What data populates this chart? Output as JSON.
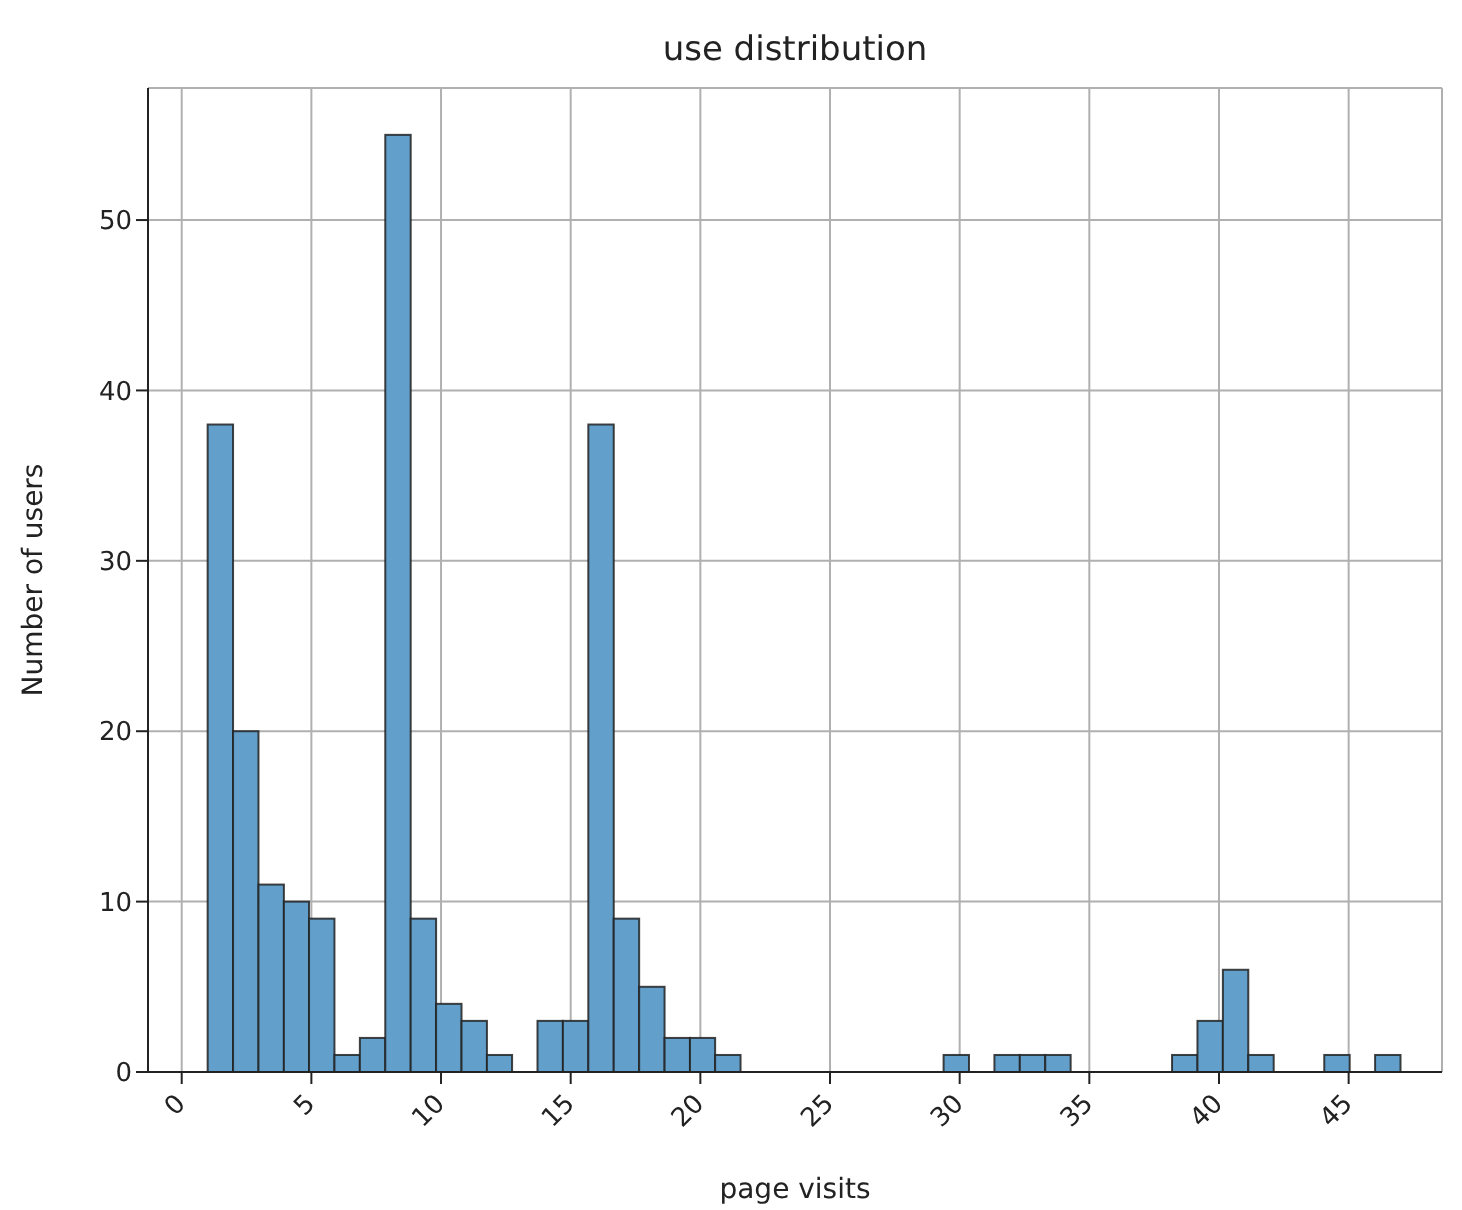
{
  "chart_data": {
    "type": "histogram",
    "title": "use distribution",
    "xlabel": "page visits",
    "ylabel": "Number of users",
    "bins": [
      1,
      1.98,
      2.96,
      3.94,
      4.91,
      5.89,
      6.87,
      7.85,
      8.83,
      9.81,
      10.79,
      11.77,
      12.74,
      13.72,
      14.7,
      15.68,
      16.66,
      17.64,
      18.62,
      19.6,
      20.57,
      21.55,
      22.53,
      23.51,
      24.49,
      25.47,
      26.45,
      27.43,
      28.4,
      29.38,
      30.36,
      31.34,
      32.32,
      33.3,
      34.28,
      35.26,
      36.23,
      37.21,
      38.19,
      39.17,
      40.15,
      41.13,
      42.11,
      43.09,
      44.06,
      45.04,
      46.02,
      47
    ],
    "values": [
      38,
      20,
      11,
      10,
      9,
      1,
      2,
      55,
      9,
      4,
      3,
      1,
      0,
      3,
      3,
      38,
      9,
      5,
      2,
      2,
      1,
      0,
      0,
      0,
      0,
      0,
      0,
      0,
      0,
      1,
      0,
      1,
      1,
      1,
      0,
      0,
      0,
      0,
      1,
      3,
      6,
      1,
      0,
      0,
      1,
      0,
      1
    ],
    "color": "#62a0cb",
    "xlim": [
      -1.3,
      48.6
    ],
    "ylim": [
      0,
      57.75
    ],
    "xticks": [
      0,
      5,
      10,
      15,
      20,
      25,
      30,
      35,
      40,
      45
    ],
    "yticks": [
      0,
      10,
      20,
      30,
      40,
      50
    ],
    "grid": true
  }
}
